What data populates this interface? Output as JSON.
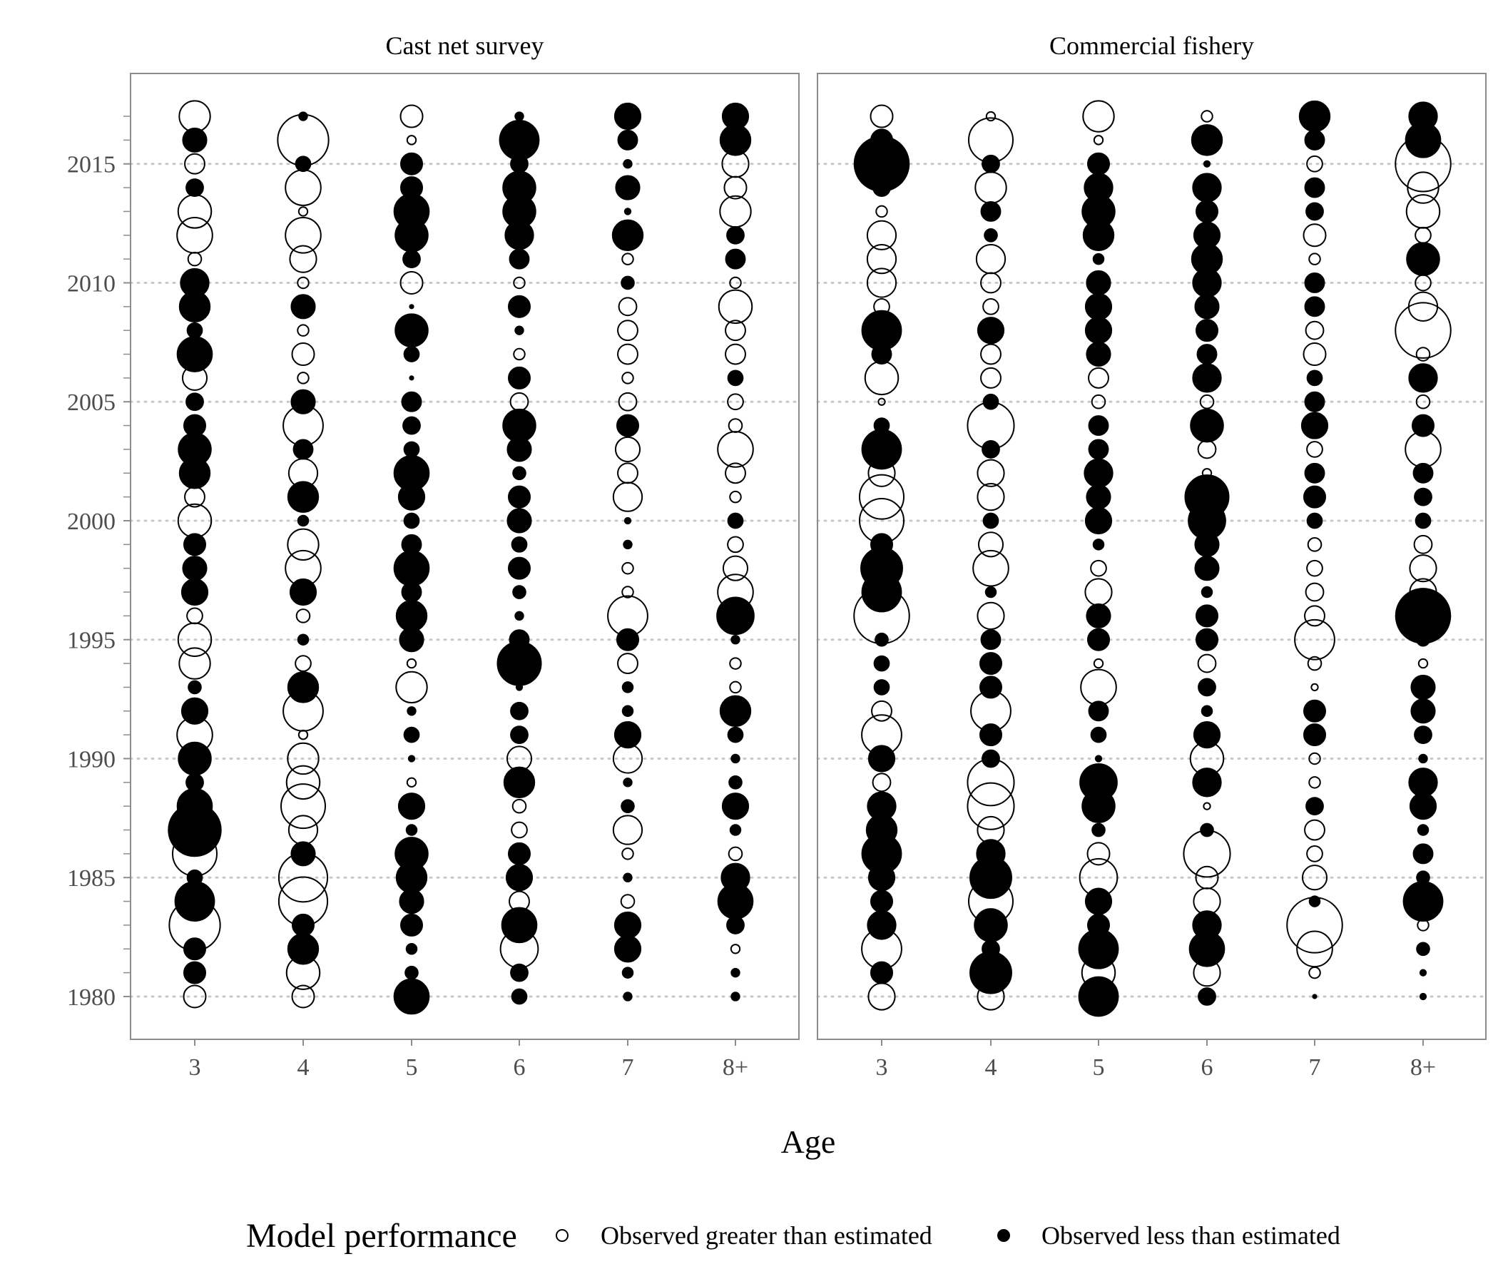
{
  "chart_data": {
    "type": "scatter",
    "subtype": "bubble-residuals",
    "x_title": "Age",
    "legend": {
      "title": "Model performance",
      "items": [
        {
          "label": "Observed greater than estimated",
          "fill": "none",
          "sign": 1
        },
        {
          "label": "Observed less than estimated",
          "fill": "#000000",
          "sign": -1
        }
      ],
      "placement": "bottom"
    },
    "ages": [
      "3",
      "4",
      "5",
      "6",
      "7",
      "8+"
    ],
    "years": [
      1980,
      1981,
      1982,
      1983,
      1984,
      1985,
      1986,
      1987,
      1988,
      1989,
      1990,
      1991,
      1992,
      1993,
      1994,
      1995,
      1996,
      1997,
      1998,
      1999,
      2000,
      2001,
      2002,
      2003,
      2004,
      2005,
      2006,
      2007,
      2008,
      2009,
      2010,
      2011,
      2012,
      2013,
      2014,
      2015,
      2016,
      2017
    ],
    "ylim": [
      1978.2,
      2018.8
    ],
    "y_ticks": [
      1980,
      1985,
      1990,
      1995,
      2000,
      2005,
      2010,
      2015
    ],
    "grid": {
      "major_y_dotted": true
    },
    "encoding": "size = |residual|; open circle = observed greater than estimated (+), filled circle = observed less than estimated (-)",
    "panels": [
      {
        "title": "Cast net survey",
        "residuals": {
          "1980": [
            1.0,
            1.0,
            -1.6,
            -0.7,
            -0.4,
            -0.4
          ],
          "1981": [
            -1.0,
            1.5,
            -0.6,
            -0.8,
            -0.5,
            -0.4
          ],
          "1982": [
            -1.0,
            -1.4,
            -0.5,
            1.7,
            -1.2,
            0.4
          ],
          "1983": [
            2.3,
            -1.0,
            -1.0,
            -1.6,
            -1.2,
            -0.8
          ],
          "1984": [
            -1.8,
            2.2,
            -1.1,
            0.9,
            0.6,
            -1.6
          ],
          "1985": [
            -0.7,
            2.2,
            -1.4,
            -1.2,
            -0.4,
            -1.3
          ],
          "1986": [
            2.0,
            -1.1,
            -1.5,
            -1.0,
            0.5,
            0.6
          ],
          "1987": [
            -2.4,
            1.3,
            -0.5,
            0.7,
            1.3,
            -0.5
          ],
          "1988": [
            -1.6,
            2.0,
            -1.2,
            0.6,
            -0.6,
            -1.2
          ],
          "1989": [
            -0.8,
            1.5,
            0.4,
            -1.4,
            -0.4,
            -0.6
          ],
          "1990": [
            -1.5,
            1.4,
            -0.3,
            1.1,
            1.3,
            -0.4
          ],
          "1991": [
            1.6,
            0.4,
            -0.7,
            -0.8,
            -1.2,
            -0.7
          ],
          "1992": [
            -1.2,
            1.8,
            -0.4,
            -0.8,
            -0.5,
            -1.4
          ],
          "1993": [
            -0.6,
            -1.4,
            1.4,
            -0.3,
            -0.5,
            0.5
          ],
          "1994": [
            1.4,
            0.7,
            0.4,
            -2.0,
            0.9,
            0.5
          ],
          "1995": [
            1.5,
            -0.5,
            -1.1,
            -0.9,
            -1.0,
            -0.4
          ],
          "1996": [
            0.7,
            0.6,
            -1.4,
            -0.4,
            1.8,
            -1.7
          ],
          "1997": [
            -1.2,
            -1.2,
            -0.9,
            -0.6,
            0.5,
            1.6
          ],
          "1998": [
            -1.1,
            1.6,
            -1.6,
            -1.0,
            0.5,
            1.1
          ],
          "1999": [
            -1.0,
            1.4,
            -0.9,
            -0.7,
            -0.4,
            0.7
          ],
          "2000": [
            1.5,
            -0.5,
            -0.7,
            -1.1,
            -0.3,
            -0.7
          ],
          "2001": [
            0.9,
            -1.4,
            -1.2,
            -1.0,
            1.3,
            0.5
          ],
          "2002": [
            -1.4,
            1.3,
            -1.6,
            -0.6,
            0.9,
            0.9
          ],
          "2003": [
            -1.5,
            -0.9,
            -0.7,
            -1.1,
            1.1,
            1.6
          ],
          "2004": [
            -1.0,
            1.8,
            -0.8,
            -1.5,
            -1.0,
            0.6
          ],
          "2005": [
            -0.8,
            -1.1,
            -0.9,
            0.8,
            0.8,
            0.7
          ],
          "2006": [
            1.1,
            0.5,
            -0.2,
            -1.0,
            0.5,
            -0.7
          ],
          "2007": [
            -1.6,
            1.0,
            -0.7,
            0.5,
            0.9,
            0.9
          ],
          "2008": [
            -0.7,
            0.5,
            -1.5,
            -0.4,
            0.9,
            0.9
          ],
          "2009": [
            -1.4,
            -1.1,
            -0.2,
            -1.0,
            0.8,
            1.5
          ],
          "2010": [
            -1.3,
            0.5,
            1.0,
            0.5,
            -0.6,
            0.5
          ],
          "2011": [
            0.6,
            1.2,
            -0.8,
            -0.9,
            0.5,
            -0.9
          ],
          "2012": [
            1.6,
            1.6,
            -1.5,
            -1.3,
            -1.4,
            -0.8
          ],
          "2013": [
            1.5,
            0.4,
            -1.6,
            -1.5,
            -0.3,
            1.4
          ],
          "2014": [
            -0.8,
            1.6,
            -1.0,
            -1.5,
            -1.1,
            1.0
          ],
          "2015": [
            0.9,
            -0.7,
            -1.0,
            -0.8,
            -0.4,
            1.2
          ],
          "2016": [
            -1.1,
            2.3,
            0.4,
            -1.8,
            -0.9,
            -1.4
          ],
          "2017": [
            1.4,
            -0.4,
            1.0,
            -0.4,
            -1.2,
            -1.2
          ]
        }
      },
      {
        "title": "Commercial fishery",
        "residuals": {
          "1980": [
            1.2,
            1.2,
            -1.8,
            -0.8,
            -0.2,
            -0.3
          ],
          "1981": [
            -1.0,
            -1.9,
            1.5,
            1.2,
            0.5,
            -0.3
          ],
          "1982": [
            1.8,
            -0.8,
            -1.8,
            -1.6,
            1.6,
            -0.6
          ],
          "1983": [
            -1.3,
            -1.5,
            -1.0,
            -1.3,
            2.5,
            0.5
          ],
          "1984": [
            -1.0,
            2.0,
            -1.2,
            1.2,
            -0.5,
            -1.8
          ],
          "1985": [
            -1.2,
            -1.9,
            1.7,
            1.0,
            1.1,
            -0.6
          ],
          "1986": [
            -1.8,
            -1.3,
            1.0,
            2.1,
            0.7,
            -0.9
          ],
          "1987": [
            -1.4,
            1.2,
            -0.6,
            -0.6,
            0.9,
            -0.5
          ],
          "1988": [
            -1.3,
            2.1,
            -1.5,
            0.3,
            -0.8,
            -1.2
          ],
          "1989": [
            0.8,
            2.1,
            -1.7,
            -1.3,
            0.5,
            -1.3
          ],
          "1990": [
            -1.2,
            -0.8,
            -0.3,
            1.5,
            0.5,
            -0.4
          ],
          "1991": [
            1.8,
            -1.0,
            -0.7,
            -1.2,
            -1.0,
            -0.8
          ],
          "1992": [
            0.9,
            1.8,
            -0.9,
            -0.5,
            -1.0,
            -1.1
          ],
          "1993": [
            -0.7,
            -1.0,
            1.6,
            -0.8,
            0.3,
            -1.1
          ],
          "1994": [
            -0.7,
            -1.0,
            0.4,
            0.8,
            0.6,
            0.4
          ],
          "1995": [
            -0.6,
            -0.9,
            -1.0,
            -1.0,
            1.8,
            -0.6
          ],
          "1996": [
            2.5,
            1.2,
            -1.1,
            -1.0,
            0.9,
            -2.5
          ],
          "1997": [
            -1.8,
            -0.5,
            1.2,
            -0.5,
            0.8,
            1.2
          ],
          "1998": [
            -1.9,
            1.6,
            0.7,
            -1.1,
            0.7,
            1.2
          ],
          "1999": [
            -1.0,
            1.1,
            -0.5,
            -1.1,
            0.6,
            0.8
          ],
          "2000": [
            2.0,
            -0.7,
            -1.2,
            -1.7,
            -0.7,
            -0.7
          ],
          "2001": [
            2.0,
            1.2,
            -1.1,
            -2.0,
            -1.0,
            -0.8
          ],
          "2002": [
            1.2,
            1.2,
            -1.3,
            0.4,
            -0.9,
            -0.9
          ],
          "2003": [
            -1.8,
            -0.8,
            -0.9,
            0.8,
            0.7,
            1.6
          ],
          "2004": [
            -0.7,
            2.1,
            -0.9,
            -1.5,
            -1.2,
            -1.0
          ],
          "2005": [
            0.3,
            -0.7,
            0.6,
            0.6,
            -0.9,
            0.6
          ],
          "2006": [
            1.5,
            0.9,
            0.9,
            -1.3,
            -0.7,
            -1.3
          ],
          "2007": [
            -0.9,
            0.9,
            -1.1,
            -0.9,
            1.0,
            0.6
          ],
          "2008": [
            -1.8,
            -1.2,
            -1.2,
            -1.0,
            0.8,
            2.5
          ],
          "2009": [
            0.7,
            0.7,
            -1.2,
            -1.1,
            -0.9,
            1.3
          ],
          "2010": [
            1.3,
            0.9,
            -1.1,
            -1.3,
            -0.9,
            0.7
          ],
          "2011": [
            1.3,
            1.3,
            -0.5,
            -1.4,
            0.5,
            -1.5
          ],
          "2012": [
            1.3,
            -0.6,
            -1.4,
            -1.2,
            1.0,
            0.7
          ],
          "2013": [
            0.5,
            -0.9,
            -1.5,
            -1.0,
            -0.8,
            1.5
          ],
          "2014": [
            -0.8,
            1.4,
            -1.3,
            -1.3,
            -0.9,
            1.4
          ],
          "2015": [
            -2.5,
            -0.8,
            -1.0,
            -0.3,
            0.7,
            2.5
          ],
          "2016": [
            -1.0,
            2.0,
            0.4,
            -1.4,
            -0.9,
            -1.6
          ],
          "2017": [
            1.0,
            0.4,
            1.4,
            0.5,
            -1.4,
            -1.3
          ]
        }
      }
    ]
  }
}
